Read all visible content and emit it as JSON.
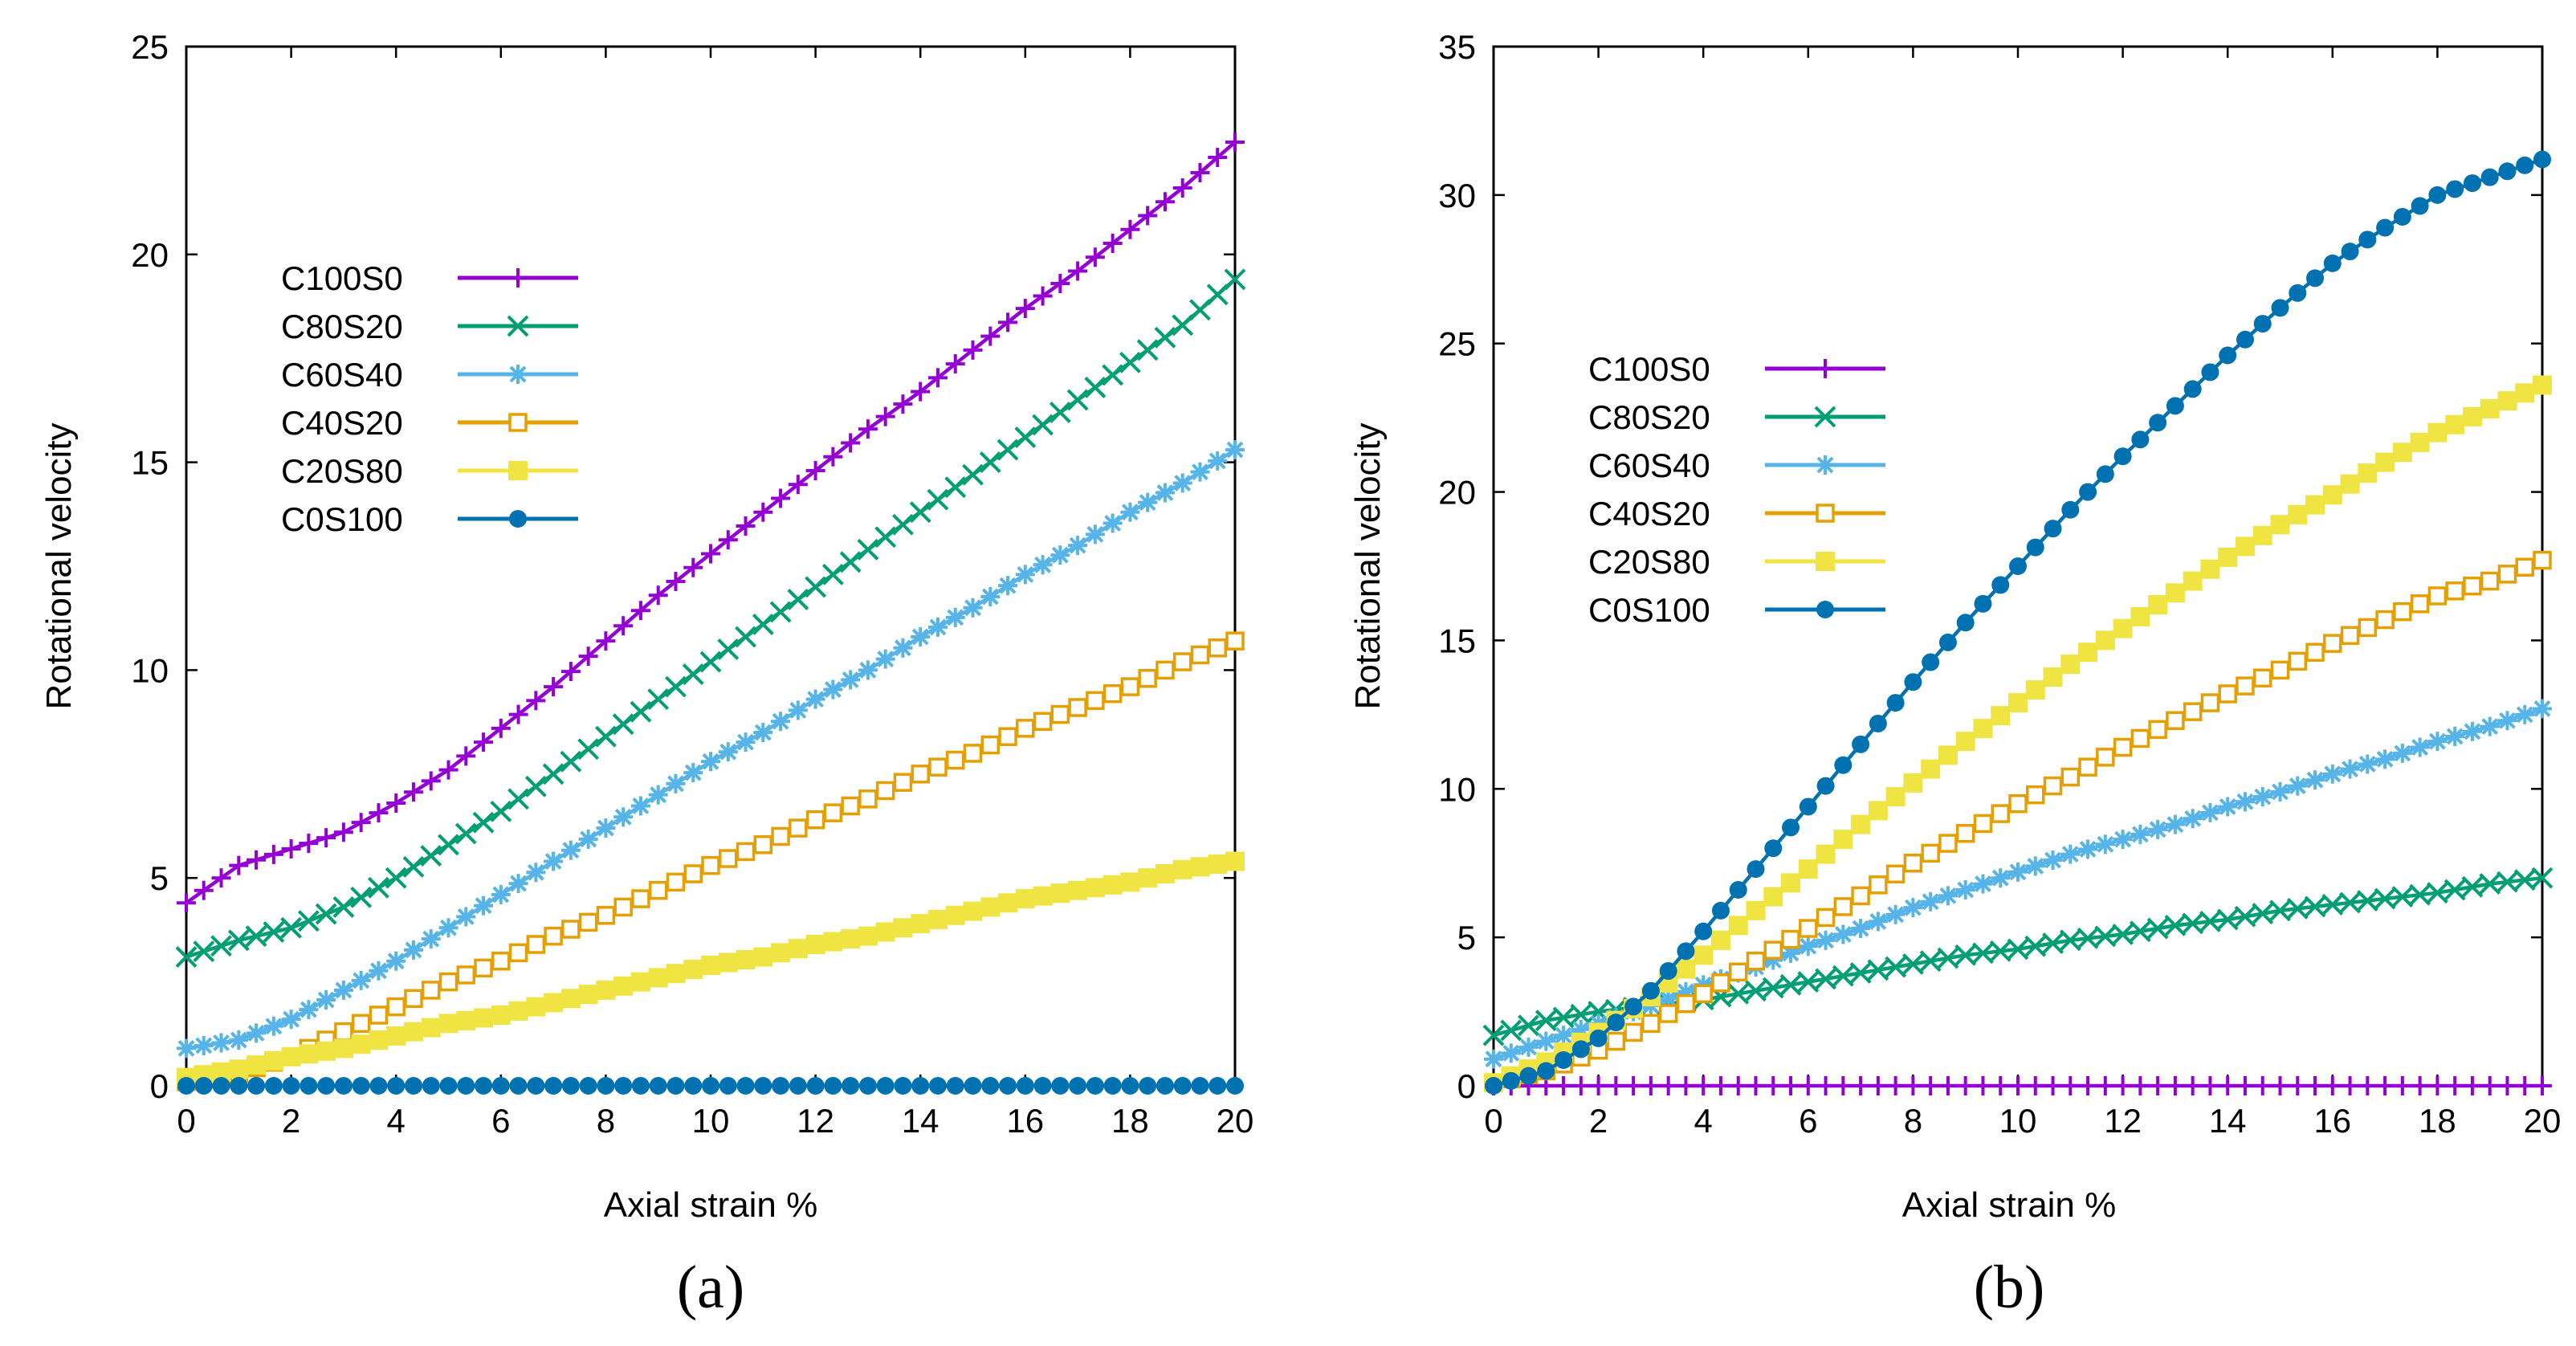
{
  "chart_data": [
    {
      "type": "line",
      "panel_label": "(a)",
      "title": "",
      "xlabel": "Axial strain %",
      "ylabel": "Rotational velocity",
      "xlim": [
        0,
        20
      ],
      "ylim": [
        0,
        25
      ],
      "xticks": [
        "0",
        "2",
        "4",
        "6",
        "8",
        "10",
        "12",
        "14",
        "16",
        "18",
        "20"
      ],
      "yticks": [
        "0",
        "5",
        "10",
        "15",
        "20",
        "25"
      ],
      "grid": false,
      "legend_position": "top-left",
      "x": [
        0,
        1,
        2,
        3,
        4,
        5,
        6,
        7,
        8,
        9,
        10,
        11,
        12,
        13,
        14,
        15,
        16,
        17,
        18,
        19,
        20
      ],
      "series": [
        {
          "name": "C100S0",
          "color": "#9400d3",
          "marker": "plus",
          "values": [
            4.4,
            5.3,
            5.7,
            6.1,
            6.8,
            7.6,
            8.6,
            9.6,
            10.7,
            11.8,
            12.8,
            13.8,
            14.8,
            15.8,
            16.7,
            17.7,
            18.7,
            19.6,
            20.6,
            21.6,
            22.7
          ]
        },
        {
          "name": "C80S20",
          "color": "#009e73",
          "marker": "cross",
          "values": [
            3.1,
            3.5,
            3.8,
            4.3,
            5.0,
            5.8,
            6.6,
            7.5,
            8.4,
            9.3,
            10.2,
            11.1,
            12.0,
            12.9,
            13.8,
            14.7,
            15.6,
            16.5,
            17.4,
            18.3,
            19.4
          ]
        },
        {
          "name": "C60S40",
          "color": "#56b4e9",
          "marker": "star",
          "values": [
            0.9,
            1.1,
            1.6,
            2.3,
            3.0,
            3.8,
            4.6,
            5.4,
            6.2,
            7.0,
            7.8,
            8.5,
            9.3,
            10.0,
            10.8,
            11.5,
            12.3,
            13.0,
            13.8,
            14.5,
            15.3
          ]
        },
        {
          "name": "C40S20",
          "color": "#e69f00",
          "marker": "open-square",
          "values": [
            0.1,
            0.3,
            0.7,
            1.3,
            1.9,
            2.5,
            3.0,
            3.6,
            4.1,
            4.7,
            5.3,
            5.8,
            6.4,
            6.9,
            7.5,
            8.0,
            8.6,
            9.1,
            9.6,
            10.2,
            10.7
          ]
        },
        {
          "name": "C20S80",
          "color": "#f0e442",
          "marker": "filled-square",
          "values": [
            0.2,
            0.4,
            0.7,
            0.9,
            1.2,
            1.5,
            1.7,
            2.0,
            2.3,
            2.6,
            2.9,
            3.1,
            3.4,
            3.6,
            3.9,
            4.2,
            4.5,
            4.7,
            4.9,
            5.2,
            5.4
          ]
        },
        {
          "name": "C0S100",
          "color": "#0072b2",
          "marker": "filled-circle",
          "values": [
            0,
            0,
            0,
            0,
            0,
            0,
            0,
            0,
            0,
            0,
            0,
            0,
            0,
            0,
            0,
            0,
            0,
            0,
            0,
            0,
            0
          ]
        }
      ]
    },
    {
      "type": "line",
      "panel_label": "(b)",
      "title": "",
      "xlabel": "Axial strain %",
      "ylabel": "Rotational velocity",
      "xlim": [
        0,
        20
      ],
      "ylim": [
        0,
        35
      ],
      "xticks": [
        "0",
        "2",
        "4",
        "6",
        "8",
        "10",
        "12",
        "14",
        "16",
        "18",
        "20"
      ],
      "yticks": [
        "0",
        "5",
        "10",
        "15",
        "20",
        "25",
        "30",
        "35"
      ],
      "grid": false,
      "legend_position": "top-left",
      "x": [
        0,
        1,
        2,
        3,
        4,
        5,
        6,
        7,
        8,
        9,
        10,
        11,
        12,
        13,
        14,
        15,
        16,
        17,
        18,
        19,
        20
      ],
      "series": [
        {
          "name": "C100S0",
          "color": "#9400d3",
          "marker": "plus",
          "values": [
            0,
            0,
            0,
            0,
            0,
            0,
            0,
            0,
            0,
            0,
            0,
            0,
            0,
            0,
            0,
            0,
            0,
            0,
            0,
            0,
            0
          ]
        },
        {
          "name": "C80S20",
          "color": "#009e73",
          "marker": "cross",
          "values": [
            1.7,
            2.2,
            2.5,
            2.7,
            2.9,
            3.2,
            3.5,
            3.8,
            4.1,
            4.4,
            4.6,
            4.9,
            5.1,
            5.4,
            5.6,
            5.9,
            6.1,
            6.3,
            6.5,
            6.8,
            7.0
          ]
        },
        {
          "name": "C60S40",
          "color": "#56b4e9",
          "marker": "star",
          "values": [
            0.9,
            1.5,
            2.1,
            2.7,
            3.4,
            4.0,
            4.7,
            5.3,
            6.0,
            6.6,
            7.2,
            7.8,
            8.3,
            8.8,
            9.4,
            9.9,
            10.5,
            11.0,
            11.6,
            12.1,
            12.7
          ]
        },
        {
          "name": "C40S20",
          "color": "#e69f00",
          "marker": "open-square",
          "values": [
            0.1,
            0.5,
            1.2,
            2.1,
            3.1,
            4.2,
            5.3,
            6.4,
            7.5,
            8.5,
            9.5,
            10.4,
            11.4,
            12.3,
            13.2,
            14.0,
            14.9,
            15.7,
            16.5,
            17.0,
            17.7
          ]
        },
        {
          "name": "C20S80",
          "color": "#f0e442",
          "marker": "filled-square",
          "values": [
            0.1,
            0.8,
            1.8,
            3.0,
            4.4,
            5.9,
            7.3,
            8.8,
            10.2,
            11.6,
            12.9,
            14.2,
            15.4,
            16.6,
            17.8,
            18.9,
            19.9,
            21.0,
            22.0,
            22.8,
            23.6
          ]
        },
        {
          "name": "C0S100",
          "color": "#0072b2",
          "marker": "filled-circle",
          "values": [
            0,
            0.5,
            1.6,
            3.2,
            5.2,
            7.3,
            9.4,
            11.5,
            13.6,
            15.6,
            17.5,
            19.4,
            21.2,
            22.9,
            24.6,
            26.2,
            27.7,
            28.9,
            30.0,
            30.6,
            31.2
          ]
        }
      ]
    }
  ]
}
